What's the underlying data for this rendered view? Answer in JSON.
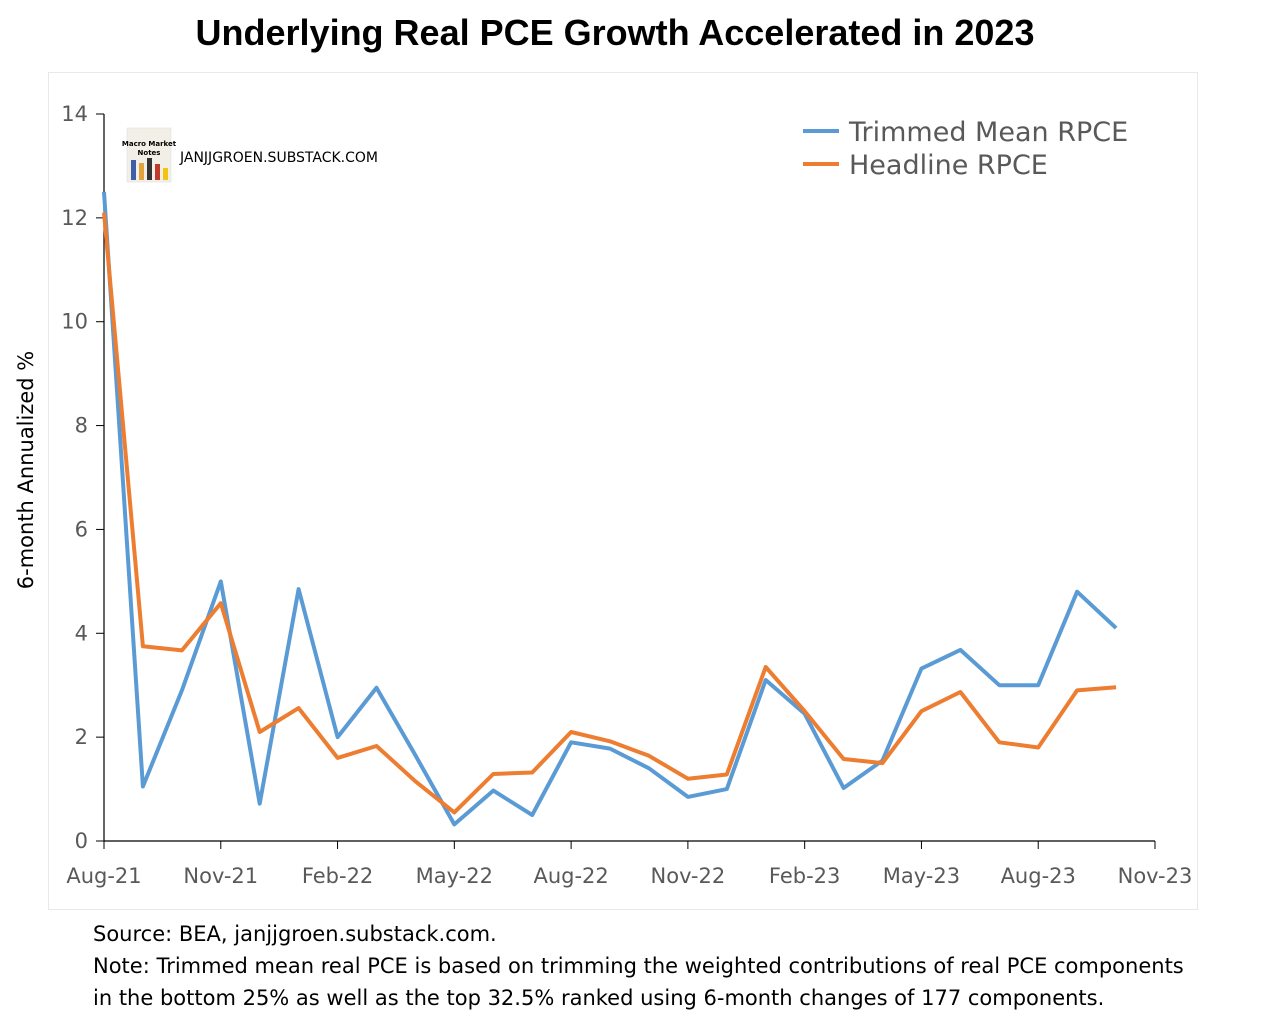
{
  "chart_data": {
    "type": "line",
    "title": "Underlying Real PCE Growth Accelerated in 2023",
    "ylabel": "6-month Annualized %",
    "xlabel": "",
    "ylim": [
      0,
      14
    ],
    "yticks": [
      "0",
      "2",
      "4",
      "6",
      "8",
      "10",
      "12",
      "14"
    ],
    "xticks": [
      "Aug-21",
      "Nov-21",
      "Feb-22",
      "May-22",
      "Aug-22",
      "Nov-22",
      "Feb-23",
      "May-23",
      "Aug-23",
      "Nov-23"
    ],
    "x": [
      "Aug-21",
      "Sep-21",
      "Oct-21",
      "Nov-21",
      "Dec-21",
      "Jan-22",
      "Feb-22",
      "Mar-22",
      "Apr-22",
      "May-22",
      "Jun-22",
      "Jul-22",
      "Aug-22",
      "Sep-22",
      "Oct-22",
      "Nov-22",
      "Dec-22",
      "Jan-23",
      "Feb-23",
      "Mar-23",
      "Apr-23",
      "May-23",
      "Jun-23",
      "Jul-23",
      "Aug-23",
      "Sep-23",
      "Oct-23"
    ],
    "series": [
      {
        "name": "Trimmed Mean RPCE",
        "color": "#5B9BD5",
        "values": [
          12.5,
          1.05,
          2.9,
          5.0,
          0.72,
          4.85,
          2.0,
          2.95,
          1.65,
          0.32,
          0.97,
          0.5,
          1.9,
          1.78,
          1.4,
          0.85,
          1.0,
          3.1,
          2.45,
          1.02,
          1.55,
          3.32,
          3.68,
          3.0,
          3.0,
          4.8,
          4.1
        ]
      },
      {
        "name": "Headline RPCE",
        "color": "#ED7D31",
        "values": [
          12.1,
          3.75,
          3.67,
          4.58,
          2.1,
          2.56,
          1.6,
          1.83,
          1.15,
          0.55,
          1.29,
          1.32,
          2.1,
          1.92,
          1.64,
          1.2,
          1.28,
          3.35,
          2.5,
          1.58,
          1.5,
          2.5,
          2.87,
          1.9,
          1.8,
          2.9,
          2.96
        ]
      }
    ],
    "legend_position": "top-right",
    "grid": false
  },
  "watermark": {
    "text": "JANJJGROEN.SUBSTACK.COM",
    "logo_text_1": "Macro Market",
    "logo_text_2": "Notes"
  },
  "footnote": {
    "source": "Source: BEA, janjjgroen.substack.com.",
    "note_line1": "Note: Trimmed mean real PCE is based on trimming the weighted contributions of real PCE components",
    "note_line2": "in the bottom 25% as well as the top 32.5% ranked using 6-month changes of 177 components."
  }
}
